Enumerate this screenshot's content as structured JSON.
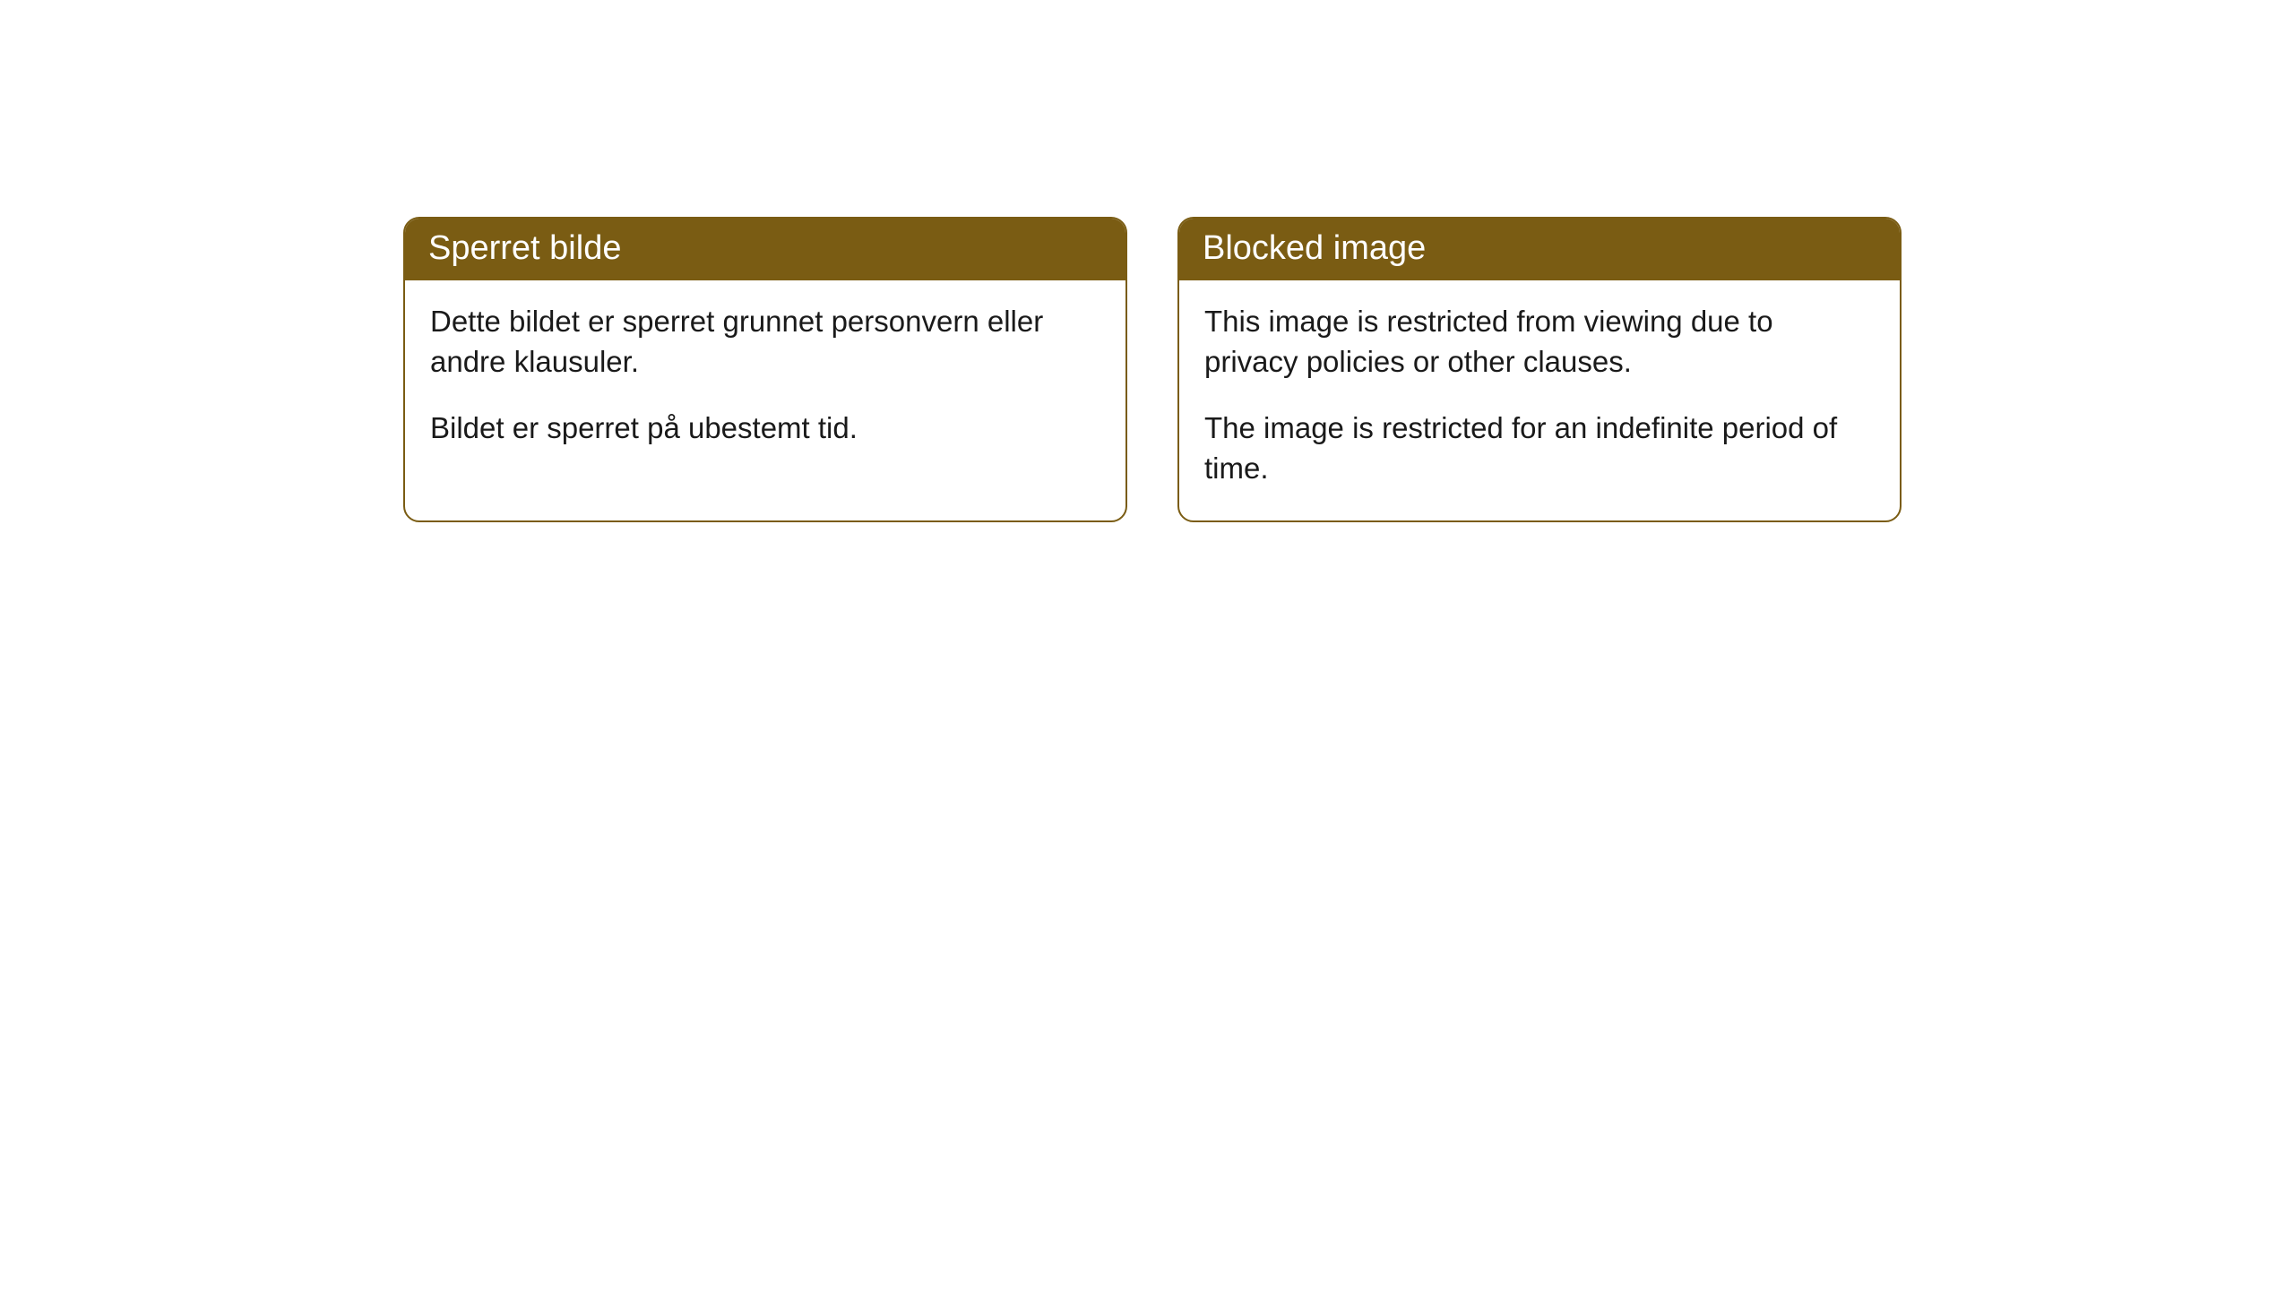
{
  "cards": [
    {
      "title": "Sperret bilde",
      "paragraph1": "Dette bildet er sperret grunnet personvern eller andre klausuler.",
      "paragraph2": "Bildet er sperret på ubestemt tid."
    },
    {
      "title": "Blocked image",
      "paragraph1": "This image is restricted from viewing due to privacy policies or other clauses.",
      "paragraph2": "The image is restricted for an indefinite period of time."
    }
  ],
  "style": {
    "header_bg_color": "#7a5c13",
    "header_text_color": "#ffffff",
    "body_text_color": "#1a1a1a",
    "border_color": "#7a5c13",
    "background_color": "#ffffff",
    "border_radius": 18,
    "header_fontsize": 38,
    "body_fontsize": 33
  }
}
